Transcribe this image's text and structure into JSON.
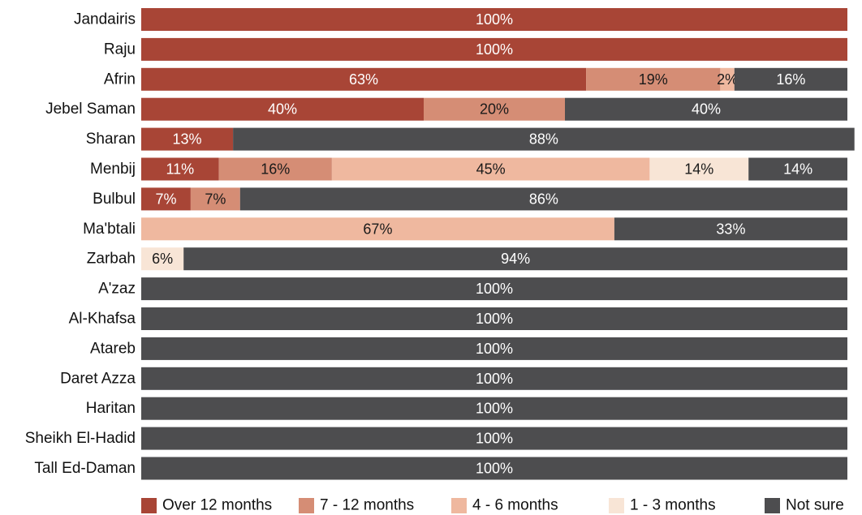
{
  "chart_data": {
    "type": "bar",
    "orientation": "horizontal",
    "stacked": true,
    "title": "",
    "xlabel": "",
    "ylabel": "",
    "xlim": [
      0,
      100
    ],
    "grid": false,
    "legend_position": "bottom",
    "categories": [
      "Jandairis",
      "Raju",
      "Afrin",
      "Jebel Saman",
      "Sharan",
      "Menbij",
      "Bulbul",
      "Ma'btali",
      "Zarbah",
      "A'zaz",
      "Al-Khafsa",
      "Atareb",
      "Daret Azza",
      "Haritan",
      "Sheikh El-Hadid",
      "Tall Ed-Daman"
    ],
    "series": [
      {
        "name": "Over 12 months",
        "color": "#a84536",
        "text_color": "#ffffff",
        "values": [
          100,
          100,
          63,
          40,
          13,
          11,
          7,
          0,
          0,
          0,
          0,
          0,
          0,
          0,
          0,
          0
        ],
        "labels": [
          "100%",
          "100%",
          "63%",
          "40%",
          "13%",
          "11%",
          "7%",
          "",
          "",
          "",
          "",
          "",
          "",
          "",
          "",
          ""
        ]
      },
      {
        "name": "7 - 12 months",
        "color": "#d58d75",
        "text_color": "#1a1a1a",
        "values": [
          0,
          0,
          19,
          20,
          0,
          16,
          7,
          0,
          0,
          0,
          0,
          0,
          0,
          0,
          0,
          0
        ],
        "labels": [
          "",
          "",
          "19%",
          "20%",
          "",
          "16%",
          "7%",
          "",
          "",
          "",
          "",
          "",
          "",
          "",
          "",
          ""
        ]
      },
      {
        "name": "4 - 6 months",
        "color": "#efb89f",
        "text_color": "#1a1a1a",
        "values": [
          0,
          0,
          2,
          0,
          0,
          45,
          0,
          67,
          0,
          0,
          0,
          0,
          0,
          0,
          0,
          0
        ],
        "labels": [
          "",
          "",
          "2%",
          "",
          "",
          "45%",
          "",
          "67%",
          "",
          "",
          "",
          "",
          "",
          "",
          "",
          ""
        ]
      },
      {
        "name": "1 - 3 months",
        "color": "#f8e5d6",
        "text_color": "#1a1a1a",
        "values": [
          0,
          0,
          0,
          0,
          0,
          14,
          0,
          0,
          6,
          0,
          0,
          0,
          0,
          0,
          0,
          0
        ],
        "labels": [
          "",
          "",
          "",
          "",
          "",
          "14%",
          "",
          "",
          "6%",
          "",
          "",
          "",
          "",
          "",
          "",
          ""
        ]
      },
      {
        "name": "Not sure",
        "color": "#4d4d4f",
        "text_color": "#ffffff",
        "values": [
          0,
          0,
          16,
          40,
          88,
          14,
          86,
          33,
          94,
          100,
          100,
          100,
          100,
          100,
          100,
          100
        ],
        "labels": [
          "",
          "",
          "16%",
          "40%",
          "88%",
          "14%",
          "86%",
          "33%",
          "94%",
          "100%",
          "100%",
          "100%",
          "100%",
          "100%",
          "100%",
          "100%"
        ]
      }
    ]
  }
}
